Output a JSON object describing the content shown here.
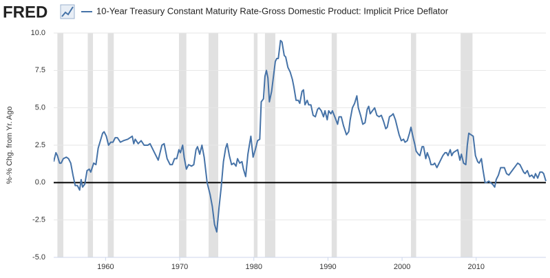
{
  "chart_data": {
    "type": "line",
    "logo": "FRED",
    "ylabel": "%-% Chg. from Yr. Ago",
    "xlim": [
      1953.0,
      2019.4
    ],
    "xticks": [
      1960,
      1970,
      1980,
      1990,
      2000,
      2010
    ],
    "ylim": [
      -5,
      10
    ],
    "yticks": [
      {
        "value": -5,
        "label": "-5.0"
      },
      {
        "value": -2.5,
        "label": "-2.5"
      },
      {
        "value": 0,
        "label": "0.0"
      },
      {
        "value": 2.5,
        "label": "2.5"
      },
      {
        "value": 5,
        "label": "5.0"
      },
      {
        "value": 7.5,
        "label": "7.5"
      },
      {
        "value": 10,
        "label": "10.0"
      }
    ],
    "grid": true,
    "baseline": 0,
    "recession_color": "#e1e1e1",
    "recessions": [
      [
        1953.5,
        1954.3
      ],
      [
        1957.6,
        1958.3
      ],
      [
        1960.3,
        1961.1
      ],
      [
        1969.9,
        1970.9
      ],
      [
        1973.9,
        1975.2
      ],
      [
        1980.0,
        1980.5
      ],
      [
        1981.5,
        1982.9
      ],
      [
        1990.5,
        1991.2
      ],
      [
        2001.2,
        2001.9
      ],
      [
        2007.9,
        2009.5
      ]
    ],
    "x": [
      1953.0,
      1953.3,
      1953.5,
      1953.8,
      1954.0,
      1954.3,
      1954.7,
      1955.0,
      1955.3,
      1955.6,
      1955.9,
      1956.2,
      1956.5,
      1956.7,
      1956.9,
      1957.2,
      1957.5,
      1957.8,
      1958.0,
      1958.4,
      1958.7,
      1959.0,
      1959.3,
      1959.6,
      1959.8,
      1960.1,
      1960.4,
      1960.7,
      1961.0,
      1961.3,
      1961.6,
      1962.0,
      1962.4,
      1963.0,
      1963.6,
      1963.8,
      1964.0,
      1964.4,
      1964.8,
      1965.2,
      1965.7,
      1966.0,
      1966.4,
      1966.8,
      1967.1,
      1967.6,
      1967.9,
      1968.3,
      1968.7,
      1969.0,
      1969.3,
      1969.6,
      1969.9,
      1970.1,
      1970.4,
      1970.6,
      1970.9,
      1971.2,
      1971.6,
      1971.9,
      1972.2,
      1972.4,
      1972.7,
      1973.0,
      1973.3,
      1973.7,
      1974.1,
      1974.4,
      1974.7,
      1975.0,
      1975.3,
      1975.6,
      1975.9,
      1976.2,
      1976.4,
      1976.7,
      1977.0,
      1977.3,
      1977.6,
      1977.8,
      1978.1,
      1978.4,
      1978.6,
      1978.9,
      1979.2,
      1979.6,
      1979.9,
      1980.2,
      1980.5,
      1980.8,
      1981.0,
      1981.3,
      1981.5,
      1981.7,
      1981.9,
      1982.1,
      1982.4,
      1982.6,
      1982.9,
      1983.1,
      1983.3,
      1983.6,
      1983.8,
      1984.1,
      1984.3,
      1984.6,
      1984.9,
      1985.2,
      1985.4,
      1985.7,
      1986.0,
      1986.2,
      1986.5,
      1986.7,
      1986.9,
      1987.2,
      1987.4,
      1987.7,
      1988.0,
      1988.3,
      1988.6,
      1988.8,
      1989.1,
      1989.4,
      1989.6,
      1989.9,
      1990.1,
      1990.4,
      1990.6,
      1991.0,
      1991.3,
      1991.5,
      1991.8,
      1992.1,
      1992.5,
      1992.8,
      1993.0,
      1993.3,
      1993.6,
      1993.9,
      1994.1,
      1994.4,
      1994.7,
      1995.0,
      1995.3,
      1995.5,
      1995.7,
      1996.0,
      1996.3,
      1996.6,
      1996.9,
      1997.2,
      1997.5,
      1997.8,
      1998.0,
      1998.3,
      1998.6,
      1998.8,
      1999.1,
      1999.4,
      1999.6,
      1999.9,
      2000.2,
      2000.4,
      2000.7,
      2001.0,
      2001.2,
      2001.5,
      2001.7,
      2001.9,
      2002.2,
      2002.4,
      2002.7,
      2002.9,
      2003.2,
      2003.4,
      2003.7,
      2003.9,
      2004.2,
      2004.4,
      2004.7,
      2004.9,
      2005.2,
      2005.5,
      2005.8,
      2006.0,
      2006.2,
      2006.5,
      2006.7,
      2006.9,
      2007.2,
      2007.5,
      2007.8,
      2008.0,
      2008.3,
      2008.6,
      2008.8,
      2009.0,
      2009.3,
      2009.6,
      2009.9,
      2010.2,
      2010.4,
      2010.7,
      2010.9,
      2011.2,
      2011.4,
      2011.7,
      2011.9,
      2012.2,
      2012.5,
      2012.7,
      2013.0,
      2013.3,
      2013.5,
      2013.8,
      2014.1,
      2014.4,
      2014.7,
      2015.0,
      2015.3,
      2015.6,
      2015.9,
      2016.1,
      2016.4,
      2016.6,
      2016.9,
      2017.2,
      2017.5,
      2017.8,
      2018.0,
      2018.3,
      2018.6,
      2018.9,
      2019.1,
      2019.4
    ],
    "series": [
      {
        "name": "10-Year Treasury Constant Maturity Rate-Gross Domestic Product: Implicit Price Deflator",
        "color": "#4572a7",
        "values": [
          1.4,
          2.0,
          1.8,
          1.3,
          1.3,
          1.6,
          1.7,
          1.6,
          1.3,
          0.5,
          -0.2,
          -0.2,
          -0.5,
          0.2,
          -0.3,
          -0.1,
          0.8,
          0.9,
          0.7,
          1.3,
          1.2,
          2.3,
          2.8,
          3.3,
          3.4,
          3.1,
          2.5,
          2.7,
          2.7,
          3.0,
          3.0,
          2.7,
          2.8,
          2.9,
          3.1,
          2.6,
          2.9,
          2.6,
          2.8,
          2.5,
          2.5,
          2.6,
          2.2,
          1.8,
          1.5,
          2.5,
          2.6,
          1.6,
          1.2,
          1.2,
          1.6,
          1.6,
          2.2,
          2.0,
          2.5,
          1.7,
          0.9,
          1.2,
          1.1,
          1.2,
          2.2,
          2.4,
          1.9,
          2.5,
          1.7,
          0.0,
          -0.8,
          -1.6,
          -2.8,
          -3.3,
          -1.7,
          -0.3,
          1.4,
          2.3,
          2.6,
          1.8,
          1.2,
          1.3,
          1.1,
          1.6,
          1.3,
          1.4,
          0.9,
          0.4,
          1.9,
          3.1,
          1.7,
          2.2,
          2.8,
          2.9,
          5.4,
          5.6,
          7.1,
          7.5,
          7.0,
          5.4,
          6.1,
          6.9,
          8.1,
          8.3,
          8.3,
          9.5,
          9.4,
          8.5,
          8.4,
          7.7,
          7.4,
          6.9,
          6.4,
          5.5,
          5.5,
          5.3,
          6.1,
          6.2,
          5.2,
          5.5,
          5.2,
          5.2,
          4.5,
          4.4,
          4.9,
          5.0,
          4.8,
          4.4,
          4.8,
          4.2,
          4.8,
          4.6,
          4.8,
          4.3,
          3.9,
          4.4,
          4.4,
          3.8,
          3.2,
          3.4,
          4.2,
          5.0,
          5.3,
          5.8,
          5.0,
          4.5,
          3.9,
          4.0,
          4.9,
          5.1,
          4.6,
          4.8,
          5.0,
          4.5,
          4.4,
          4.5,
          4.1,
          3.6,
          3.7,
          4.4,
          4.5,
          4.6,
          4.2,
          3.6,
          3.2,
          2.8,
          2.9,
          2.7,
          2.8,
          3.3,
          3.7,
          3.0,
          2.6,
          2.1,
          1.9,
          1.8,
          2.4,
          2.4,
          1.6,
          2.0,
          1.6,
          1.2,
          1.2,
          1.3,
          1.0,
          1.2,
          1.5,
          1.8,
          2.0,
          2.0,
          1.8,
          2.2,
          1.8,
          2.0,
          2.1,
          2.2,
          1.5,
          1.9,
          1.3,
          1.2,
          2.5,
          3.3,
          3.2,
          3.1,
          1.8,
          1.4,
          1.3,
          1.6,
          0.9,
          0.0,
          0.0,
          0.1,
          0.0,
          -0.1,
          -0.3,
          0.2,
          0.5,
          1.0,
          1.0,
          1.0,
          0.6,
          0.5,
          0.7,
          0.9,
          1.1,
          1.3,
          1.2,
          1.0,
          0.7,
          0.6,
          0.8,
          0.4,
          0.5,
          0.3,
          0.6,
          0.3,
          0.7,
          0.7,
          0.6,
          0.1
        ]
      }
    ]
  }
}
